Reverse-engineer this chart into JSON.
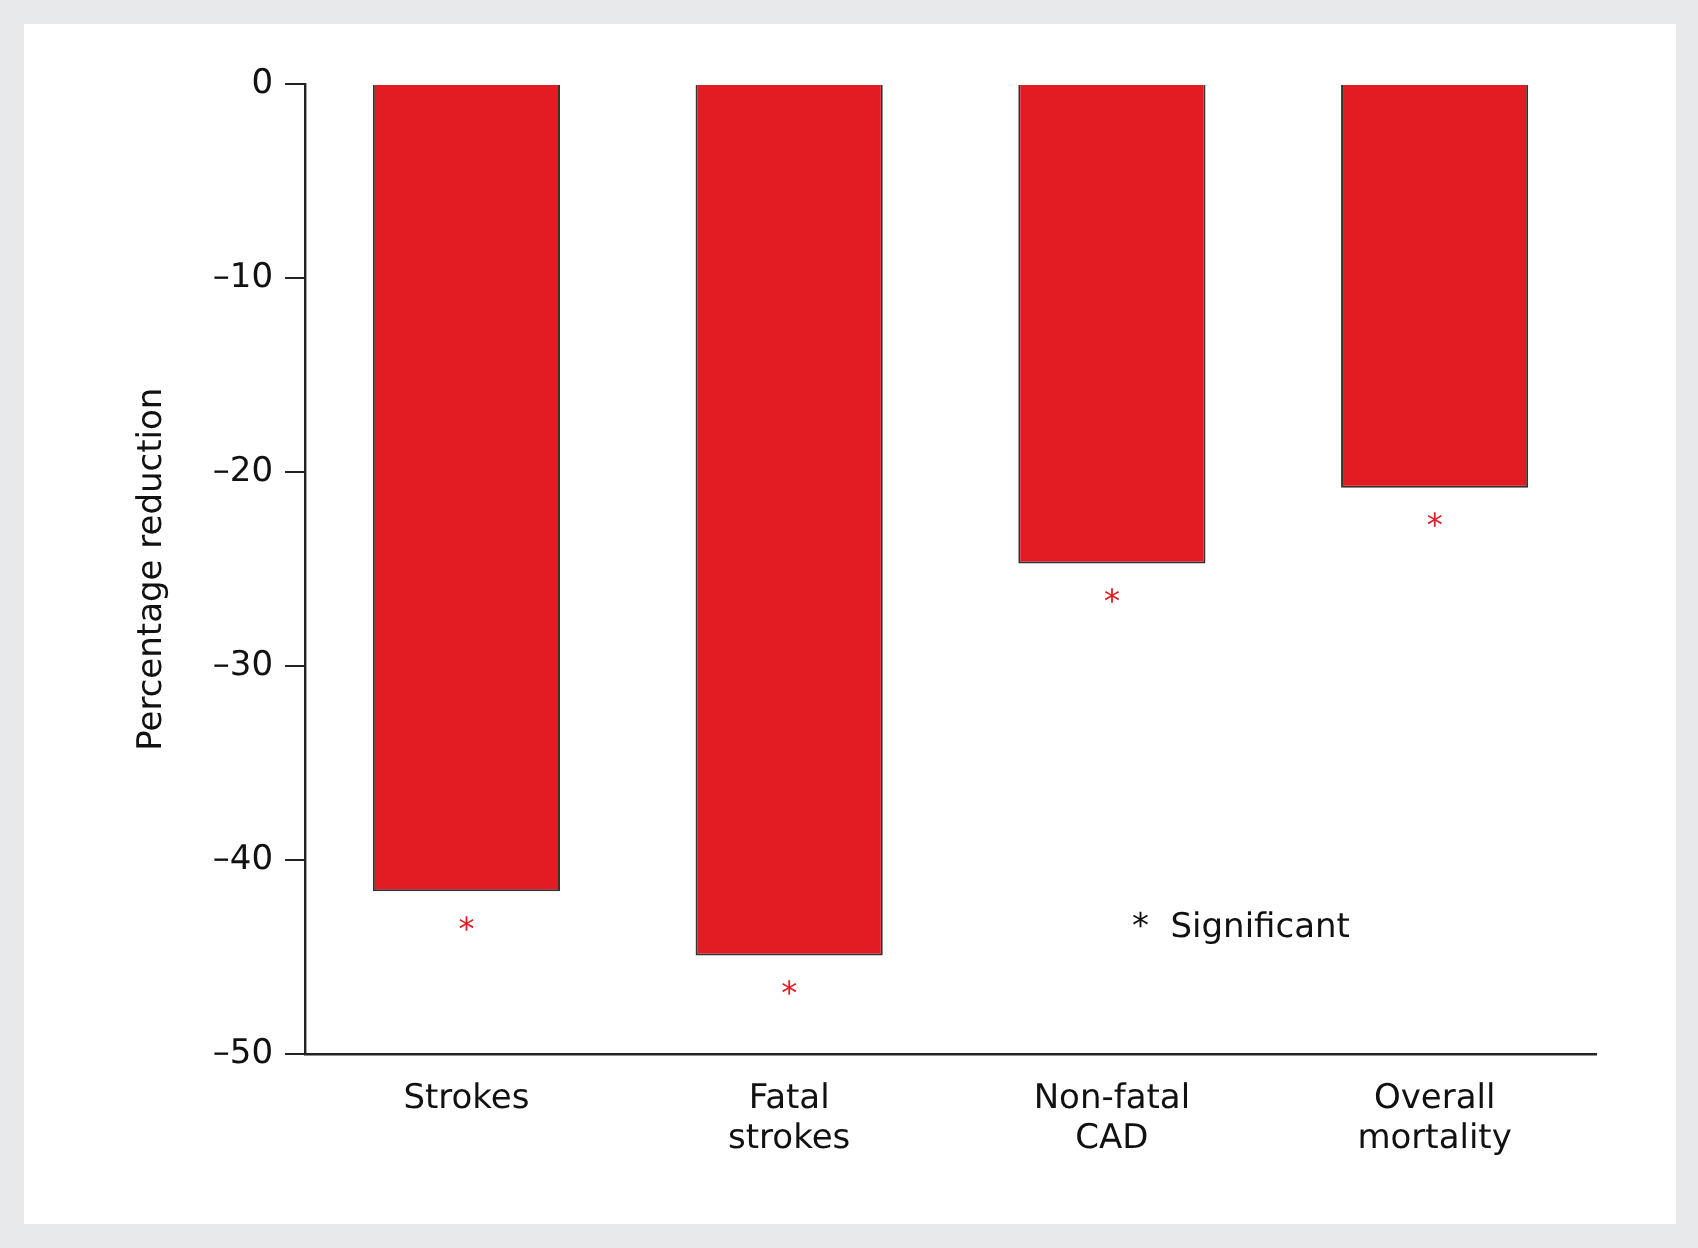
{
  "chart_data": {
    "type": "bar",
    "ylabel": "Percentage reduction",
    "categories": [
      "Strokes",
      "Fatal strokes",
      "Non-fatal CAD",
      "Overall mortality"
    ],
    "values": [
      -41.6,
      -44.9,
      -24.7,
      -20.8
    ],
    "color": "#e31b23",
    "ylim": [
      -50,
      0
    ],
    "yticks": [
      {
        "value": 0,
        "label": "0"
      },
      {
        "value": -10,
        "label": "–10"
      },
      {
        "value": -20,
        "label": "–20"
      },
      {
        "value": -30,
        "label": "–30"
      },
      {
        "value": -40,
        "label": "–40"
      },
      {
        "value": -50,
        "label": "–50"
      }
    ],
    "grid": false,
    "legend": false,
    "annotations": [
      {
        "text": "*",
        "x": "Strokes",
        "y": -41.6
      },
      {
        "text": "*",
        "x": "Fatal strokes",
        "y": -44.9
      },
      {
        "text": "*",
        "x": "Non-fatal CAD",
        "y": -24.7
      },
      {
        "text": "*",
        "x": "Overall mortality",
        "y": -20.8
      },
      "*  Significant"
    ]
  }
}
